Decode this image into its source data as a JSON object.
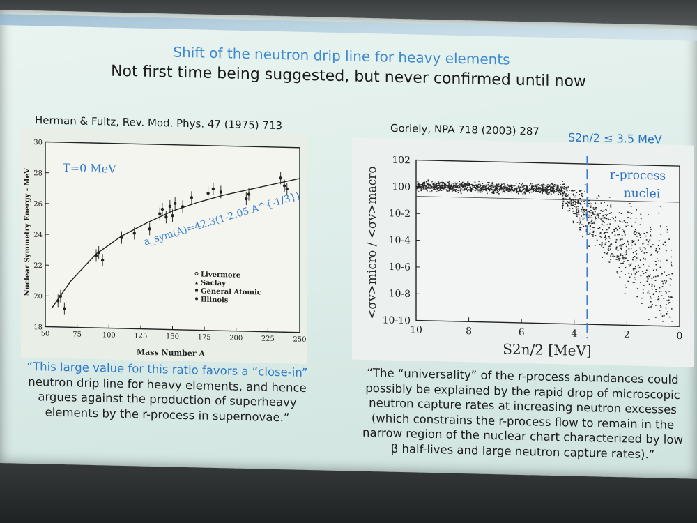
{
  "slide": {
    "title": "Shift of the neutron drip line for heavy elements",
    "subtitle": "Not first time being suggested, but never confirmed until now"
  },
  "left_panel": {
    "citation": "Herman & Fultz, Rev. Mod. Phys. 47 (1975) 713",
    "chart_data": {
      "type": "scatter",
      "title": "",
      "xlabel": "Mass Number A",
      "ylabel": "Nuclear Symmetry Energy - MeV",
      "xlim": [
        50,
        250
      ],
      "ylim": [
        18,
        30
      ],
      "x_ticks": [
        "50",
        "75",
        "100",
        "125",
        "150",
        "175",
        "200",
        "225",
        "250"
      ],
      "y_ticks": [
        "18",
        "20",
        "22",
        "24",
        "26",
        "28",
        "30"
      ],
      "annotation_temperature": "T=0 MeV",
      "fit_label": "a_sym(A)=42.3(1-2.05 A^{-1/3})",
      "legend": [
        "Livermore",
        "Saclay",
        "General Atomic",
        "Illinois"
      ],
      "fit_curve": {
        "x": [
          55,
          70,
          90,
          110,
          130,
          150,
          170,
          190,
          210,
          230,
          250
        ],
        "y": [
          19.2,
          21.0,
          22.8,
          24.0,
          24.9,
          25.7,
          26.3,
          26.8,
          27.2,
          27.6,
          28.0
        ]
      },
      "series": [
        {
          "name": "data",
          "x": [
            60,
            62,
            65,
            90,
            92,
            95,
            110,
            120,
            132,
            140,
            142,
            145,
            148,
            150,
            152,
            158,
            165,
            178,
            182,
            188,
            208,
            210,
            235,
            238,
            240
          ],
          "y": [
            19.7,
            20.0,
            19.2,
            22.7,
            22.9,
            22.4,
            23.9,
            24.2,
            24.5,
            25.5,
            25.8,
            25.3,
            26.0,
            25.4,
            26.2,
            26.0,
            26.6,
            26.9,
            27.2,
            27.0,
            26.6,
            26.9,
            28.0,
            27.5,
            27.3
          ]
        }
      ]
    },
    "quote_line1": "“This large value for this ratio favors a “close-in”",
    "quote_rest": "neutron drip line for heavy elements, and hence argues against the production of superheavy elements by the r-process in supernovae.”"
  },
  "right_panel": {
    "citation": "Goriely, NPA 718 (2003) 287",
    "threshold_label": "S2n/2 ≤ 3.5 MeV",
    "chart_data": {
      "type": "scatter",
      "title": "",
      "xlabel": "S2n/2 [MeV]",
      "ylabel": "<σv>micro / <σv>macro",
      "xlim": [
        10,
        0
      ],
      "ylim_log10": [
        -10,
        2
      ],
      "x_ticks": [
        "10",
        "8",
        "6",
        "4",
        "2",
        "0"
      ],
      "y_ticks": [
        "10^2",
        "10^0",
        "10^-2",
        "10^-4",
        "10^-6",
        "10^-8",
        "10^-10"
      ],
      "threshold_x": 3.5,
      "region_label_1": "r-process",
      "region_label_2": "nuclei",
      "band_description": "dense band near 10^0 from 10 to ~4 MeV, spreading downward below 4 MeV"
    },
    "quote": "“The “universality” of the r-process abundances could possibly be explained by the rapid drop of microscopic neutron capture rates at increasing neutron excesses (which constrains the r-process flow to remain in the narrow region of the nuclear chart characterized by low β half-lives and large neutron capture rates).”"
  }
}
